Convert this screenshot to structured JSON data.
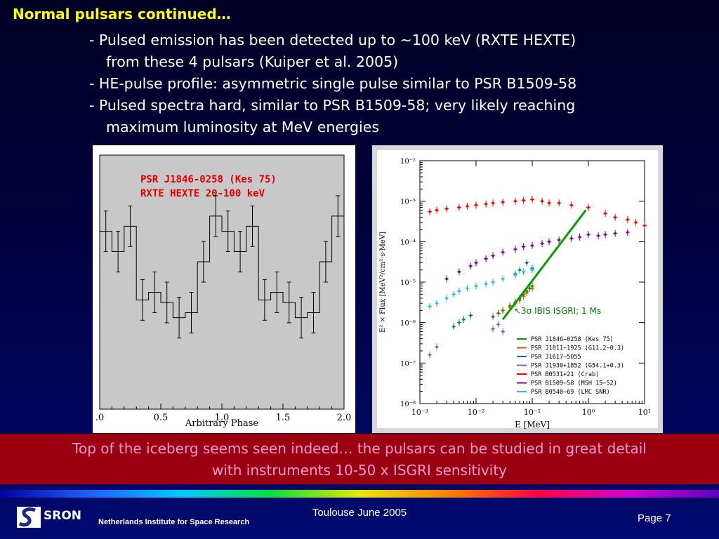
{
  "title": "Normal pulsars continued…",
  "bullets": [
    "- Pulsed emission has been detected up to ~100 keV (RXTE HEXTE)",
    "from these 4 pulsars (Kuiper et al. 2005)",
    "- HE-pulse profile: asymmetric single pulse similar to PSR B1509-58",
    "- Pulsed spectra hard, similar to PSR B1509-58; very likely reaching",
    "maximum luminosity at MeV energies"
  ],
  "banner": {
    "line1": "Top of the iceberg seems seen indeed… the pulsars can be studied in great detail",
    "line2": "with instruments 10-50 x ISGRI sensitivity"
  },
  "footer": {
    "center": "Toulouse June 2005",
    "page": "Page 7",
    "org": "Netherlands Institute for Space Research",
    "logo_text": "SRON"
  },
  "chart_data": [
    {
      "type": "line",
      "subtype": "step-with-errorbars",
      "title": "PSR J1846-0258 (Kes 75)",
      "subtitle": "RXTE HEXTE 20-100 keV",
      "xlabel": "Arbitrary Phase",
      "ylabel": "",
      "xlim": [
        0.0,
        2.0
      ],
      "ylim": [
        0,
        100
      ],
      "x_ticks": [
        ".0",
        "0.5",
        "1.0",
        "1.5",
        "2.0"
      ],
      "x": [
        0.05,
        0.15,
        0.25,
        0.35,
        0.45,
        0.55,
        0.65,
        0.75,
        0.85,
        0.95,
        1.05,
        1.15,
        1.25,
        1.35,
        1.45,
        1.55,
        1.65,
        1.75,
        1.85,
        1.95
      ],
      "values": [
        70,
        62,
        72,
        43,
        46,
        42,
        36,
        38,
        58,
        76,
        70,
        62,
        72,
        43,
        46,
        42,
        36,
        38,
        58,
        76
      ],
      "errors": [
        8,
        8,
        8,
        8,
        8,
        8,
        8,
        8,
        8,
        8,
        8,
        8,
        8,
        8,
        8,
        8,
        8,
        8,
        8,
        8
      ],
      "colors": {
        "title": "#e00000",
        "line": "#000000",
        "background": "#c8c8c8"
      }
    },
    {
      "type": "scatter",
      "xscale": "log",
      "yscale": "log",
      "xlabel": "E [MeV]",
      "ylabel": "E² × Flux [MeV²/cm²·s·MeV]",
      "xlim": [
        0.001,
        10
      ],
      "ylim": [
        1e-08,
        0.01
      ],
      "x_ticks": [
        "10⁻³",
        "10⁻²",
        "10⁻¹",
        "10⁰",
        "10¹"
      ],
      "y_ticks": [
        "10⁻⁸",
        "10⁻⁷",
        "10⁻⁶",
        "10⁻⁵",
        "10⁻⁴",
        "10⁻³",
        "10⁻²"
      ],
      "annotation": "↖3σ IBIS ISGRI; 1 Ms",
      "sensitivity_line": {
        "x": [
          0.03,
          0.9
        ],
        "y": [
          1.2e-06,
          0.0006
        ],
        "color": "#00a000"
      },
      "series": [
        {
          "name": "PSR J1846−0258 (Kes 75)",
          "color": "#1a8a1a",
          "x": [
            0.02,
            0.025,
            0.03,
            0.04,
            0.05,
            0.06,
            0.07,
            0.08,
            0.09,
            0.1
          ],
          "y": [
            1.4e-06,
            1.7e-06,
            2e-06,
            2.6e-06,
            3.2e-06,
            4e-06,
            5e-06,
            6e-06,
            7e-06,
            8e-06
          ]
        },
        {
          "name": "PSR J1811−1925 (G11.2−0.3)",
          "color": "#c06000",
          "x": [
            0.03,
            0.04,
            0.05,
            0.06,
            0.07,
            0.08,
            0.1
          ],
          "y": [
            2e-06,
            2.4e-06,
            3e-06,
            3.6e-06,
            4.5e-06,
            5.5e-06,
            7e-06
          ]
        },
        {
          "name": "PSR J1617−5055",
          "color": "#008080",
          "x": [
            0.004,
            0.005,
            0.006,
            0.008,
            0.05,
            0.06,
            0.08,
            0.1
          ],
          "y": [
            8e-07,
            1e-06,
            1.2e-06,
            1.5e-06,
            1.6e-05,
            2e-05,
            3e-05,
            2.2e-05
          ]
        },
        {
          "name": "PSR J1930+1852 (G54.1+0.3)",
          "color": "#8060c0",
          "x": [
            0.0015,
            0.002,
            0.02,
            0.025,
            0.03
          ],
          "y": [
            1.6e-07,
            2.5e-07,
            7e-07,
            9e-07,
            6e-07
          ]
        },
        {
          "name": "PSR B0531+21 (Crab)",
          "color": "#ff0000",
          "x": [
            0.0015,
            0.002,
            0.003,
            0.005,
            0.007,
            0.01,
            0.015,
            0.02,
            0.03,
            0.05,
            0.07,
            0.1,
            0.15,
            0.2,
            0.3,
            0.5,
            1,
            2,
            3,
            5,
            7,
            10
          ],
          "y": [
            0.00055,
            0.0006,
            0.00065,
            0.0007,
            0.00075,
            0.0008,
            0.00085,
            0.0009,
            0.00095,
            0.001,
            0.00105,
            0.0011,
            0.001,
            0.0009,
            0.0009,
            0.0008,
            0.0007,
            0.0005,
            0.0004,
            0.00035,
            0.0003,
            0.00025
          ]
        },
        {
          "name": "PSR B1509−58 (MSH 15−52)",
          "color": "#8000a0",
          "x": [
            0.003,
            0.005,
            0.008,
            0.01,
            0.015,
            0.02,
            0.03,
            0.05,
            0.07,
            0.1,
            0.15,
            0.2,
            0.3,
            0.5,
            0.7,
            1,
            1.5,
            2,
            3,
            5
          ],
          "y": [
            1.2e-05,
            1.8e-05,
            2.5e-05,
            3e-05,
            3.8e-05,
            4.5e-05,
            5.5e-05,
            6.5e-05,
            7.5e-05,
            8e-05,
            9e-05,
            0.0001,
            0.00011,
            0.00012,
            0.00013,
            0.00015,
            0.00014,
            0.00015,
            0.00016,
            0.00017
          ]
        },
        {
          "name": "PSR B0540−69 (LMC SNR)",
          "color": "#20c0e0",
          "x": [
            0.0015,
            0.002,
            0.003,
            0.004,
            0.005,
            0.007,
            0.01,
            0.015,
            0.02,
            0.03,
            0.05,
            0.07,
            0.1
          ],
          "y": [
            2.5e-06,
            3e-06,
            4e-06,
            5e-06,
            6e-06,
            7e-06,
            8e-06,
            9e-06,
            1e-05,
            1.2e-05,
            1.5e-05,
            1.8e-05,
            2e-05
          ]
        }
      ],
      "legend_position": "bottom-right"
    }
  ]
}
